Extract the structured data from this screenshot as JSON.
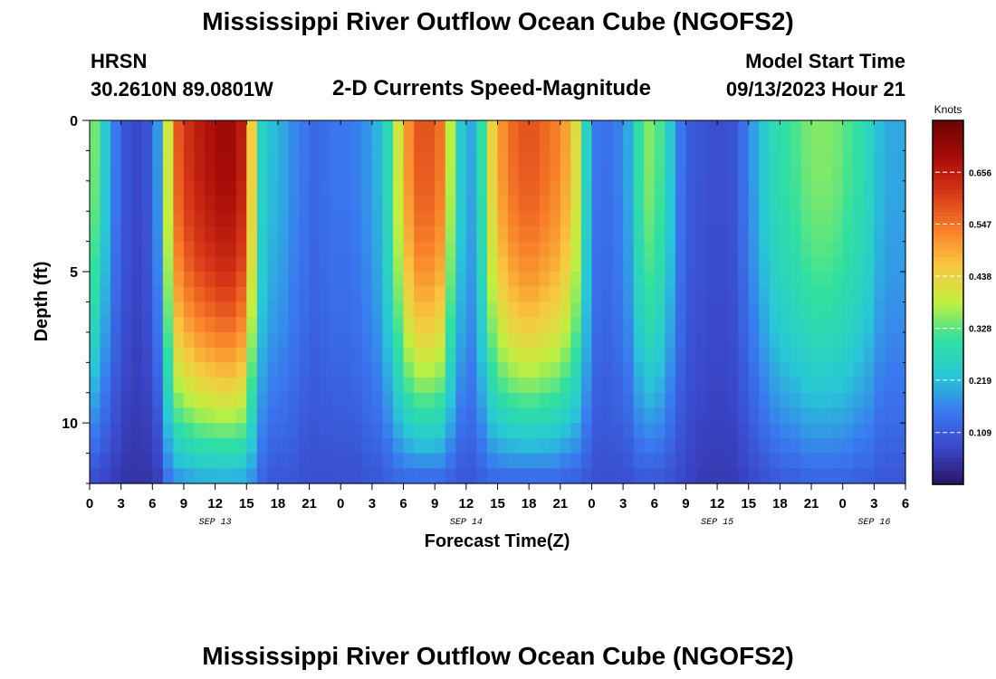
{
  "page": {
    "title": "Mississippi River Outflow Ocean Cube (NGOFS2)",
    "station_name": "HRSN",
    "station_coords": "30.2610N  89.0801W",
    "plot_subtitle": "2-D Currents Speed-Magnitude",
    "start_label": "Model Start Time",
    "start_value": "09/13/2023 Hour 21",
    "bottom_title": "Mississippi River Outflow Ocean Cube (NGOFS2)"
  },
  "chart_data": {
    "type": "heatmap",
    "title": "2-D Currents Speed-Magnitude",
    "xlabel": "Forecast Time(Z)",
    "ylabel": "Depth (ft)",
    "x_tick_labels": [
      "0",
      "3",
      "6",
      "9",
      "12",
      "15",
      "18",
      "21",
      "0",
      "3",
      "6",
      "9",
      "12",
      "15",
      "18",
      "21",
      "0",
      "3",
      "6",
      "9",
      "12",
      "15",
      "18",
      "21",
      "0",
      "3",
      "6"
    ],
    "date_labels": [
      {
        "text": "SEP 13",
        "hour": 12
      },
      {
        "text": "SEP 14",
        "hour": 36
      },
      {
        "text": "SEP 15",
        "hour": 60
      },
      {
        "text": "SEP 16",
        "hour": 75
      }
    ],
    "xlim": [
      0,
      78
    ],
    "y_ticks": [
      0,
      5,
      10
    ],
    "ylim": [
      0,
      12
    ],
    "colorbar": {
      "label": "Knots",
      "ticks": [
        "0.656",
        "0.547",
        "0.438",
        "0.328",
        "0.219",
        "0.109"
      ],
      "tick_values": [
        0.656,
        0.547,
        0.438,
        0.328,
        0.219,
        0.109
      ],
      "range": [
        0.0,
        0.765
      ],
      "colors": [
        "#2b1460",
        "#3a46c8",
        "#3a78f0",
        "#28c8d6",
        "#30e0a0",
        "#c0f040",
        "#f8c840",
        "#f88028",
        "#d83818",
        "#a80c08",
        "#6a0404"
      ]
    },
    "profile": {
      "hour": [
        0,
        1,
        2,
        3,
        4,
        5,
        6,
        7,
        8,
        9,
        10,
        11,
        12,
        13,
        14,
        15,
        16,
        17,
        18,
        19,
        20,
        21,
        22,
        23,
        24,
        25,
        26,
        27,
        28,
        29,
        30,
        31,
        32,
        33,
        34,
        35,
        36,
        37,
        38,
        39,
        40,
        41,
        42,
        43,
        44,
        45,
        46,
        47,
        48,
        49,
        50,
        51,
        52,
        53,
        54,
        55,
        56,
        57,
        58,
        59,
        60,
        61,
        62,
        63,
        64,
        65,
        66,
        67,
        68,
        69,
        70,
        71,
        72,
        73,
        74,
        75,
        76,
        77,
        78
      ],
      "surface": [
        0.34,
        0.24,
        0.15,
        0.1,
        0.08,
        0.1,
        0.18,
        0.4,
        0.58,
        0.63,
        0.66,
        0.68,
        0.7,
        0.7,
        0.66,
        0.45,
        0.26,
        0.22,
        0.2,
        0.17,
        0.15,
        0.13,
        0.14,
        0.15,
        0.15,
        0.16,
        0.18,
        0.21,
        0.28,
        0.4,
        0.52,
        0.58,
        0.58,
        0.55,
        0.38,
        0.24,
        0.2,
        0.3,
        0.44,
        0.52,
        0.56,
        0.58,
        0.58,
        0.56,
        0.54,
        0.5,
        0.42,
        0.26,
        0.15,
        0.14,
        0.16,
        0.2,
        0.3,
        0.35,
        0.32,
        0.24,
        0.15,
        0.11,
        0.1,
        0.09,
        0.09,
        0.1,
        0.14,
        0.19,
        0.24,
        0.28,
        0.3,
        0.32,
        0.34,
        0.35,
        0.35,
        0.34,
        0.32,
        0.3,
        0.27,
        0.22,
        0.2,
        0.2,
        0.2
      ],
      "bottom": [
        0.08,
        0.07,
        0.06,
        0.05,
        0.05,
        0.05,
        0.06,
        0.14,
        0.17,
        0.18,
        0.19,
        0.19,
        0.19,
        0.19,
        0.19,
        0.17,
        0.12,
        0.1,
        0.1,
        0.1,
        0.09,
        0.09,
        0.09,
        0.09,
        0.09,
        0.09,
        0.1,
        0.1,
        0.11,
        0.12,
        0.12,
        0.12,
        0.12,
        0.12,
        0.11,
        0.1,
        0.1,
        0.11,
        0.12,
        0.12,
        0.12,
        0.12,
        0.12,
        0.12,
        0.12,
        0.11,
        0.11,
        0.1,
        0.09,
        0.09,
        0.09,
        0.09,
        0.1,
        0.1,
        0.1,
        0.09,
        0.08,
        0.07,
        0.06,
        0.06,
        0.06,
        0.06,
        0.07,
        0.08,
        0.09,
        0.1,
        0.11,
        0.11,
        0.12,
        0.12,
        0.12,
        0.12,
        0.12,
        0.11,
        0.11,
        0.1,
        0.1,
        0.1,
        0.1
      ]
    }
  }
}
